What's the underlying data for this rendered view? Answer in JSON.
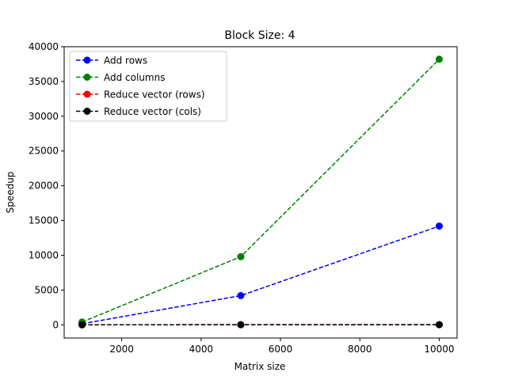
{
  "chart_data": {
    "type": "line",
    "title": "Block Size: 4",
    "xlabel": "Matrix size",
    "ylabel": "Speedup",
    "xlim": [
      550,
      10450
    ],
    "ylim": [
      -1900,
      40000
    ],
    "xticks": [
      2000,
      4000,
      6000,
      8000,
      10000
    ],
    "yticks": [
      0,
      5000,
      10000,
      15000,
      20000,
      25000,
      30000,
      35000,
      40000
    ],
    "x": [
      1000,
      5000,
      10000
    ],
    "legend_position": "top-left",
    "grid": false,
    "series": [
      {
        "name": "Add rows",
        "color": "#0000ff",
        "values": [
          150,
          4200,
          14200
        ]
      },
      {
        "name": "Add columns",
        "color": "#008000",
        "values": [
          400,
          9800,
          38200
        ]
      },
      {
        "name": "Reduce vector (rows)",
        "color": "#ff0000",
        "values": [
          5,
          20,
          25
        ]
      },
      {
        "name": "Reduce vector (cols)",
        "color": "#000000",
        "values": [
          5,
          20,
          25
        ]
      }
    ]
  }
}
